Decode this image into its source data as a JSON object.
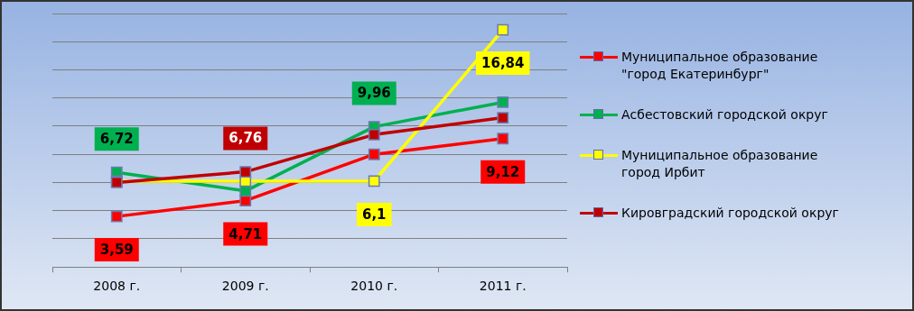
{
  "chart_data": {
    "type": "line",
    "categories": [
      "2008 г.",
      "2009 г.",
      "2010 г.",
      "2011 г."
    ],
    "series": [
      {
        "name": "Муниципальное образование \"город Екатеринбург\"",
        "color": "#ff0000",
        "values": [
          3.59,
          4.71,
          8.0,
          9.12
        ],
        "value_labels": [
          "3,59",
          "4,71",
          null,
          "9,12"
        ]
      },
      {
        "name": "Асбестовский городской округ",
        "color": "#00b050",
        "values": [
          6.72,
          5.4,
          9.96,
          11.7
        ],
        "value_labels": [
          "6,72",
          null,
          "9,96",
          null
        ]
      },
      {
        "name": "Муниципальное образование город Ирбит",
        "color": "#ffff00",
        "values": [
          6.1,
          6.1,
          6.1,
          16.84
        ],
        "value_labels": [
          null,
          null,
          "6,1",
          "16,84"
        ]
      },
      {
        "name": "Кировградский городской округ",
        "color": "#c00000",
        "values": [
          6.0,
          6.76,
          9.4,
          10.6
        ],
        "value_labels": [
          null,
          "6,76",
          null,
          null
        ]
      }
    ],
    "ylim": [
      0,
      18
    ],
    "yticks": [
      {
        "value": 0,
        "label": null
      },
      {
        "value": 2,
        "label": null
      },
      {
        "value": 4,
        "label": null
      },
      {
        "value": 6,
        "label": null
      },
      {
        "value": 8,
        "label": null
      },
      {
        "value": 10,
        "label": null
      },
      {
        "value": 12,
        "label": null
      },
      {
        "value": 14,
        "label": null
      },
      {
        "value": 16,
        "label": null
      },
      {
        "value": 18,
        "label": null
      }
    ],
    "tick_labels": "x",
    "grid": "y",
    "legend": "right",
    "marker": "square",
    "line_style": "solid"
  }
}
